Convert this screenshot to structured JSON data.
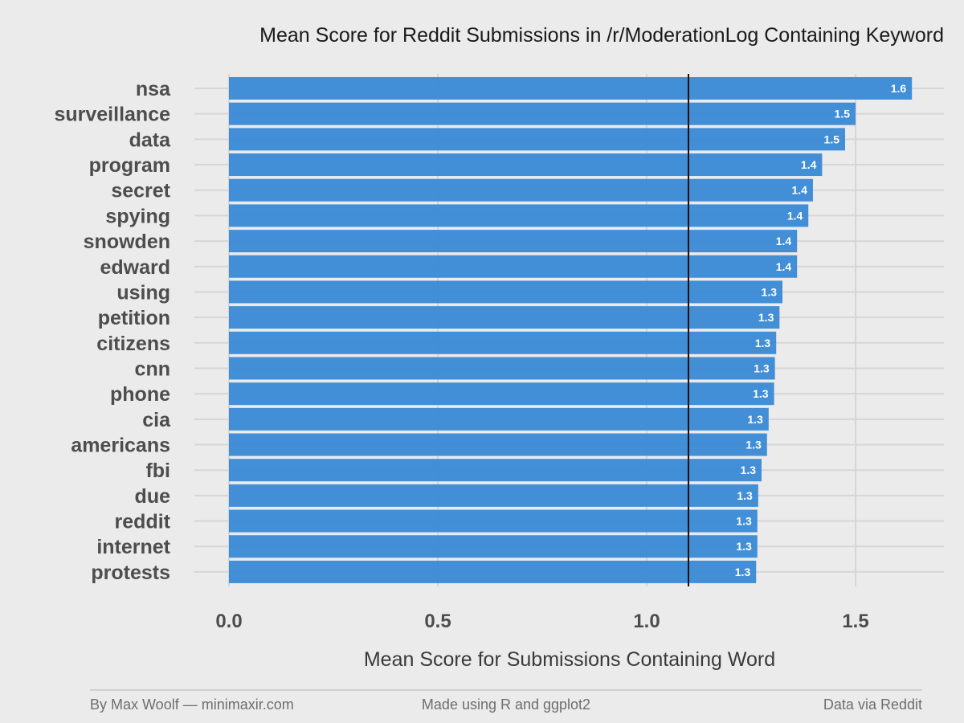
{
  "chart_data": {
    "type": "bar",
    "orientation": "horizontal",
    "title": "Mean Score for Reddit Submissions in /r/ModerationLog Containing Keyword",
    "xlabel": "Mean Score for Submissions Containing Word",
    "ylabel": "",
    "xlim": [
      0,
      1.7
    ],
    "xticks": [
      0.0,
      0.5,
      1.0,
      1.5
    ],
    "xtick_labels": [
      "0.0",
      "0.5",
      "1.0",
      "1.5"
    ],
    "reference_line": 1.1,
    "bar_color": "#3a8ad6",
    "background_color": "#ebebeb",
    "grid": true,
    "categories": [
      "nsa",
      "surveillance",
      "data",
      "program",
      "secret",
      "spying",
      "snowden",
      "edward",
      "using",
      "petition",
      "citizens",
      "cnn",
      "phone",
      "cia",
      "americans",
      "fbi",
      "due",
      "reddit",
      "internet",
      "protests"
    ],
    "values": [
      1.635,
      1.5,
      1.475,
      1.42,
      1.398,
      1.387,
      1.36,
      1.36,
      1.325,
      1.318,
      1.31,
      1.307,
      1.305,
      1.292,
      1.288,
      1.275,
      1.267,
      1.265,
      1.265,
      1.262
    ],
    "value_labels": [
      "1.6",
      "1.5",
      "1.5",
      "1.4",
      "1.4",
      "1.4",
      "1.4",
      "1.4",
      "1.3",
      "1.3",
      "1.3",
      "1.3",
      "1.3",
      "1.3",
      "1.3",
      "1.3",
      "1.3",
      "1.3",
      "1.3",
      "1.3"
    ]
  },
  "footer": {
    "left": "By Max Woolf — minimaxir.com",
    "center": "Made using R and ggplot2",
    "right": "Data via Reddit"
  }
}
